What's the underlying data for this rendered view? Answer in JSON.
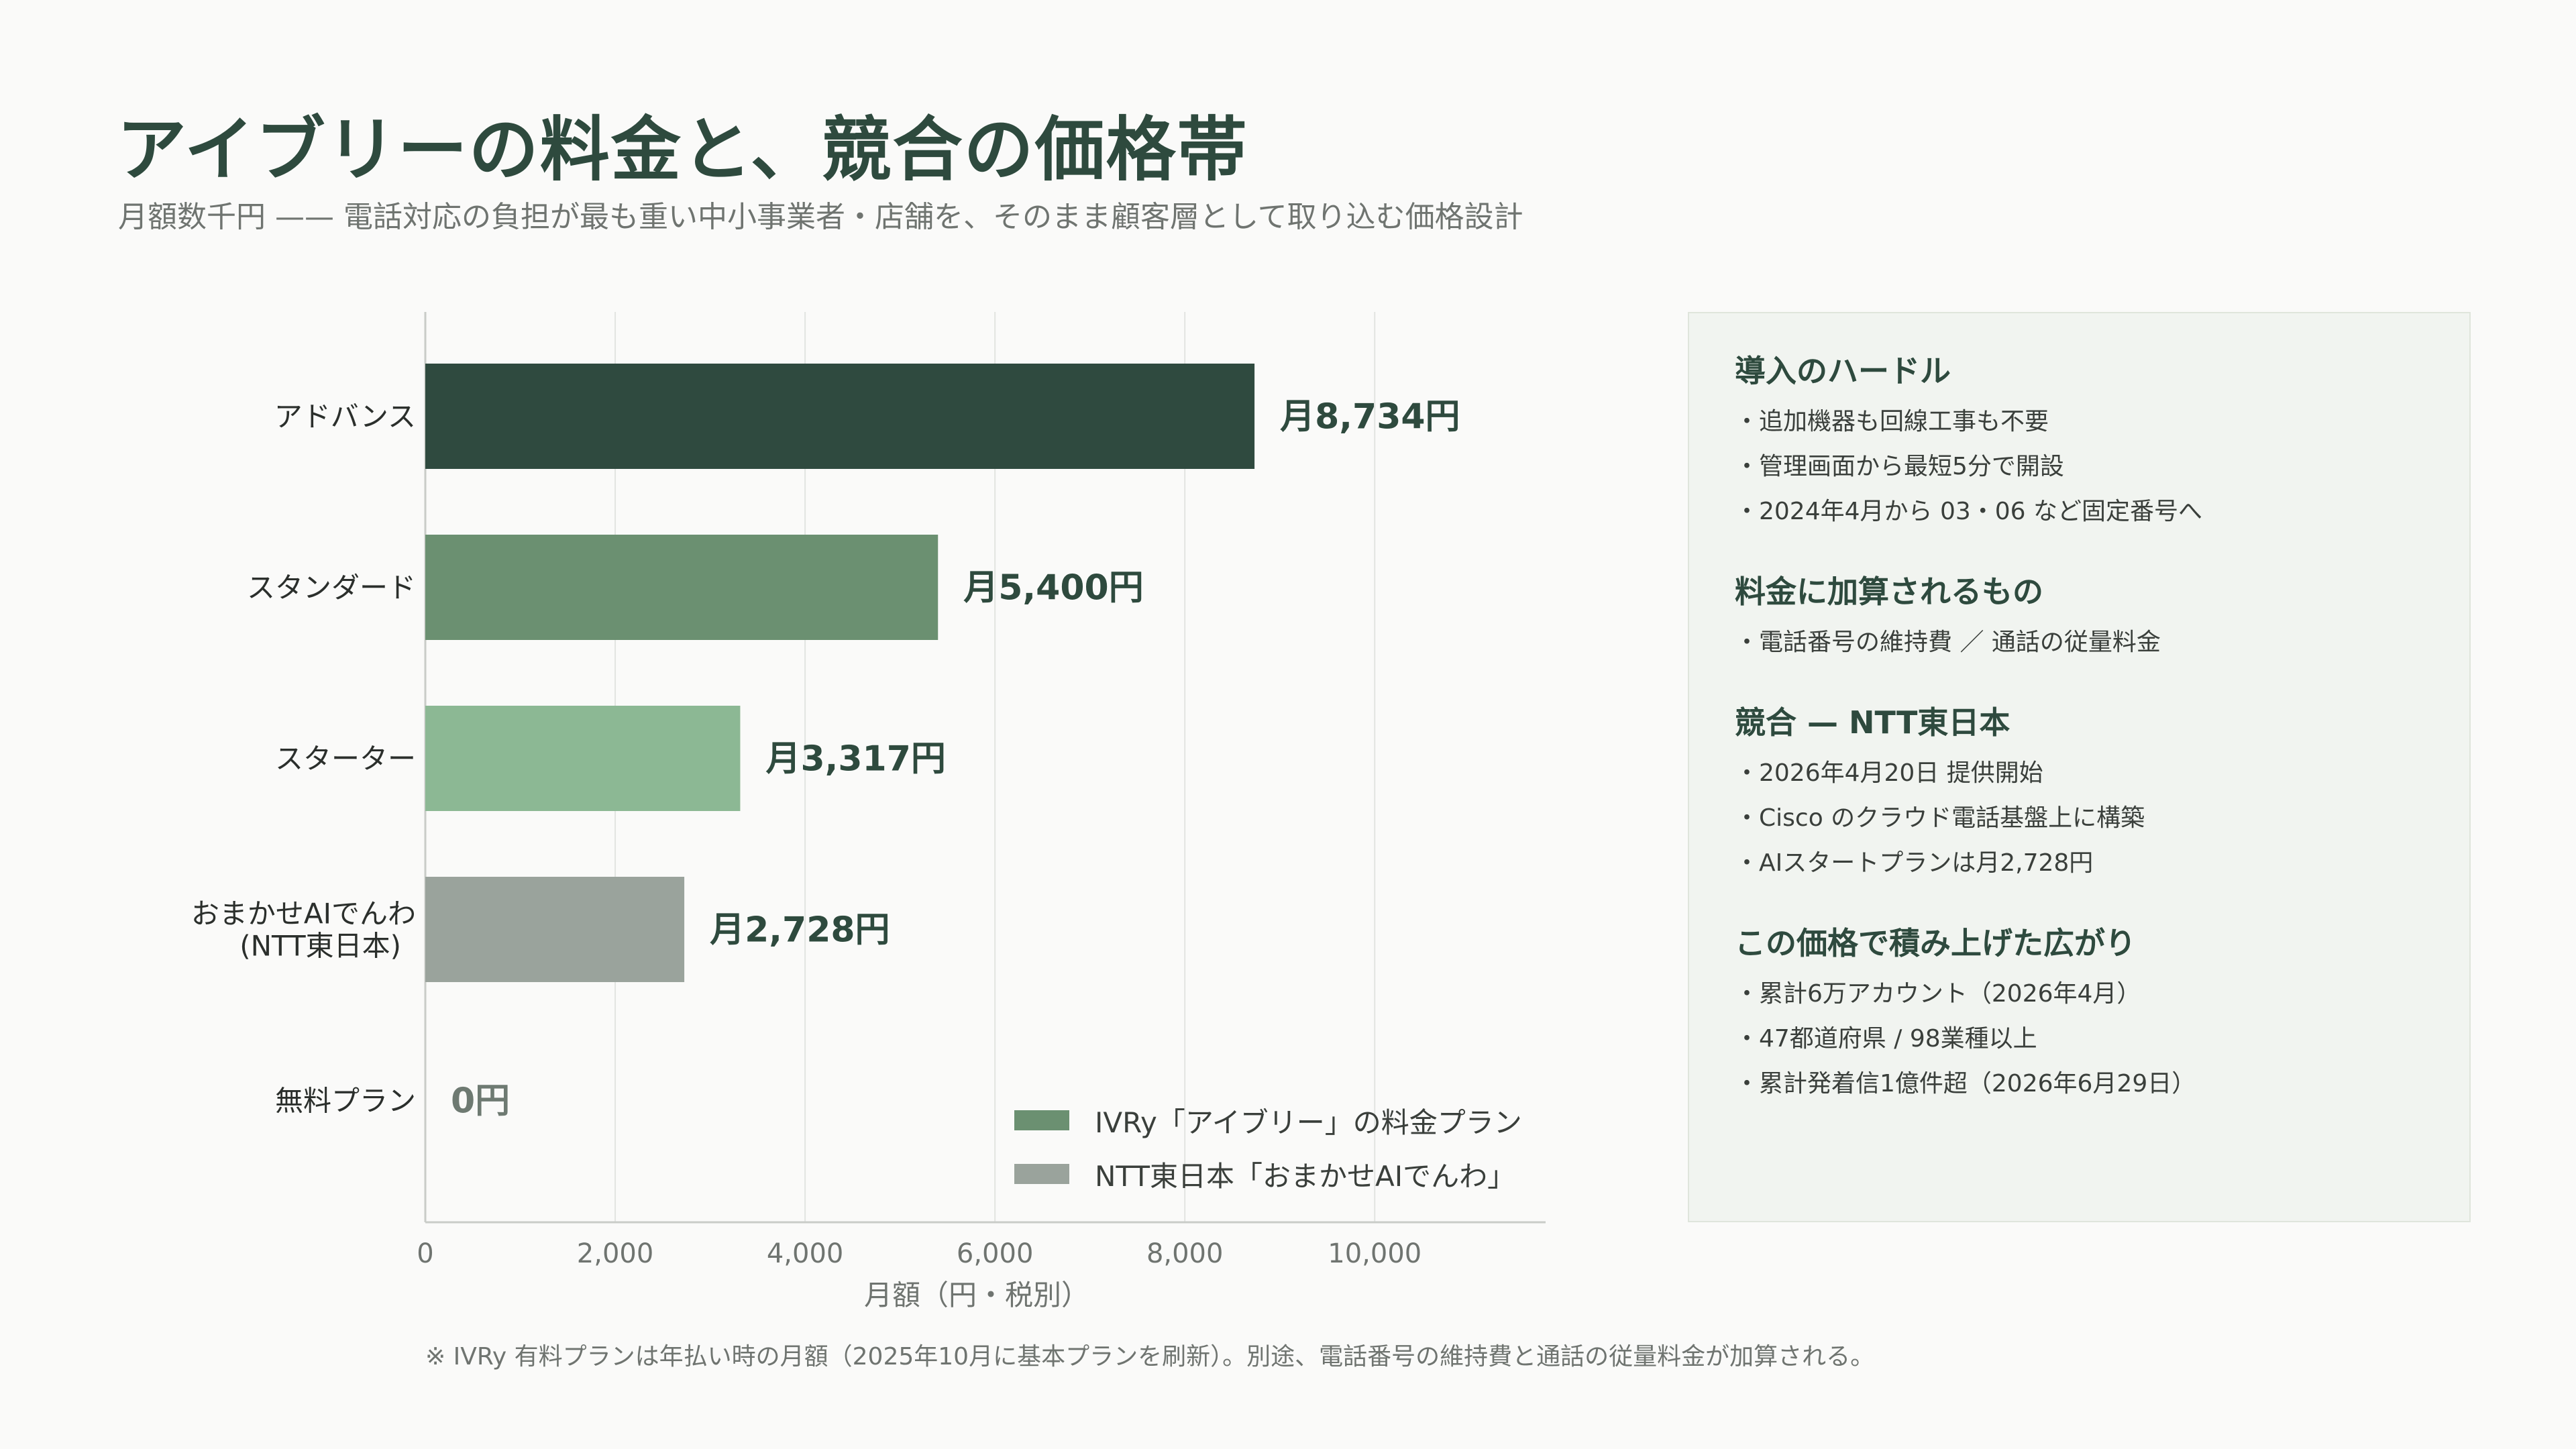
{
  "title": "アイブリーの料金と、競合の価格帯",
  "subtitle": "月額数千円 —— 電話対応の負担が最も重い中小事業者・店舗を、そのまま顧客層として取り込む価格設計",
  "footnote": "※ IVRy 有料プランは年払い時の月額（2025年10月に基本プランを刷新）。別途、電話番号の維持費と通話の従量料金が加算される。",
  "chart_data": {
    "type": "bar",
    "orientation": "horizontal",
    "categories": [
      "アドバンス",
      "スタンダード",
      "スターター",
      "おまかせAIでんわ\n(NTT東日本)",
      "無料プラン"
    ],
    "values": [
      8734,
      5400,
      3317,
      2728,
      0
    ],
    "value_labels": [
      "月8,734円",
      "月5,400円",
      "月3,317円",
      "月2,728円",
      "0円"
    ],
    "colors": [
      "#2f4a3f",
      "#6b9071",
      "#8cb894",
      "#9aa39c",
      "#6b9071"
    ],
    "series": [
      {
        "name": "IVRy「アイブリー」の料金プラン",
        "color": "#6b9071"
      },
      {
        "name": "NTT東日本「おまかせAIでんわ」",
        "color": "#9aa39c"
      }
    ],
    "xlabel": "月額（円・税別）",
    "xlim": [
      0,
      11800
    ],
    "xticks": [
      0,
      2000,
      4000,
      6000,
      8000,
      10000
    ],
    "xtick_labels": [
      "0",
      "2,000",
      "4,000",
      "6,000",
      "8,000",
      "10,000"
    ],
    "grid": true,
    "legend_position": "bottom-right"
  },
  "panel": {
    "sections": [
      {
        "title": "導入のハードル",
        "items": [
          "・追加機器も回線工事も不要",
          "・管理画面から最短5分で開設",
          "・2024年4月から 03・06 など固定番号へ"
        ]
      },
      {
        "title": "料金に加算されるもの",
        "items": [
          "・電話番号の維持費 ／ 通話の従量料金"
        ]
      },
      {
        "title": "競合 — NTT東日本",
        "items": [
          "・2026年4月20日 提供開始",
          "・Cisco のクラウド電話基盤上に構築",
          "・AIスタートプランは月2,728円"
        ]
      },
      {
        "title": "この価格で積み上げた広がり",
        "items": [
          "・累計6万アカウント（2026年4月）",
          "・47都道府県 / 98業種以上",
          "・累計発着信1億件超（2026年6月29日）"
        ]
      }
    ]
  }
}
